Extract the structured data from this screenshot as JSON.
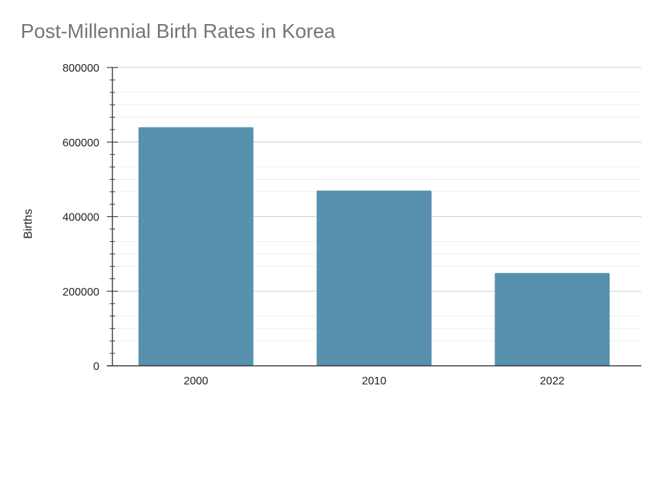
{
  "chart_data": {
    "type": "bar",
    "title": "Post-Millennial Birth Rates in Korea",
    "xlabel": "",
    "ylabel": "Births",
    "categories": [
      "2000",
      "2010",
      "2022"
    ],
    "values": [
      640000,
      470000,
      249000
    ],
    "ylim": [
      0,
      800000
    ],
    "yticks": [
      "0",
      "200000",
      "400000",
      "600000",
      "800000"
    ],
    "grid": true,
    "bar_color": "#5891b0"
  }
}
